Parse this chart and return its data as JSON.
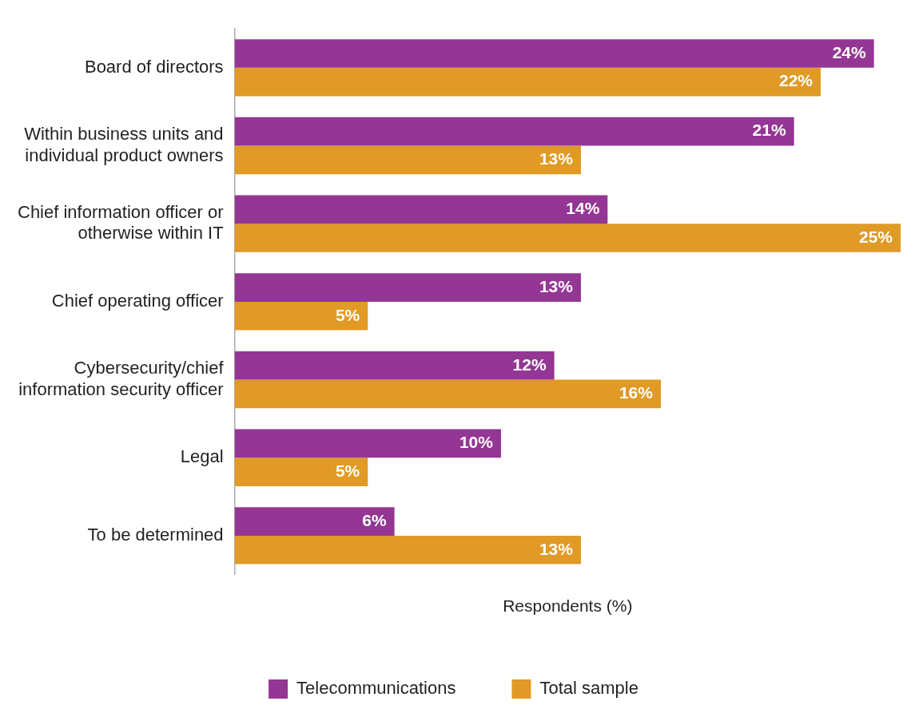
{
  "chart_data": {
    "type": "bar",
    "orientation": "horizontal",
    "xlabel": "Respondents (%)",
    "categories": [
      "Board of directors",
      "Within business units and individual product owners",
      "Chief information officer or otherwise within IT",
      "Chief operating officer",
      "Cybersecurity/chief information security officer",
      "Legal",
      "To be determined"
    ],
    "series": [
      {
        "name": "Telecommunications",
        "color": "#943693",
        "values": [
          24,
          21,
          14,
          13,
          12,
          10,
          6
        ],
        "value_labels": [
          "24%",
          "21%",
          "14%",
          "13%",
          "12%",
          "10%",
          "6%"
        ]
      },
      {
        "name": "Total sample",
        "color": "#e09a25",
        "values": [
          22,
          13,
          25,
          5,
          16,
          5,
          13
        ],
        "value_labels": [
          "22%",
          "13%",
          "25%",
          "5%",
          "16%",
          "5%",
          "13%"
        ]
      }
    ],
    "legend": "bottom",
    "grid": false
  }
}
